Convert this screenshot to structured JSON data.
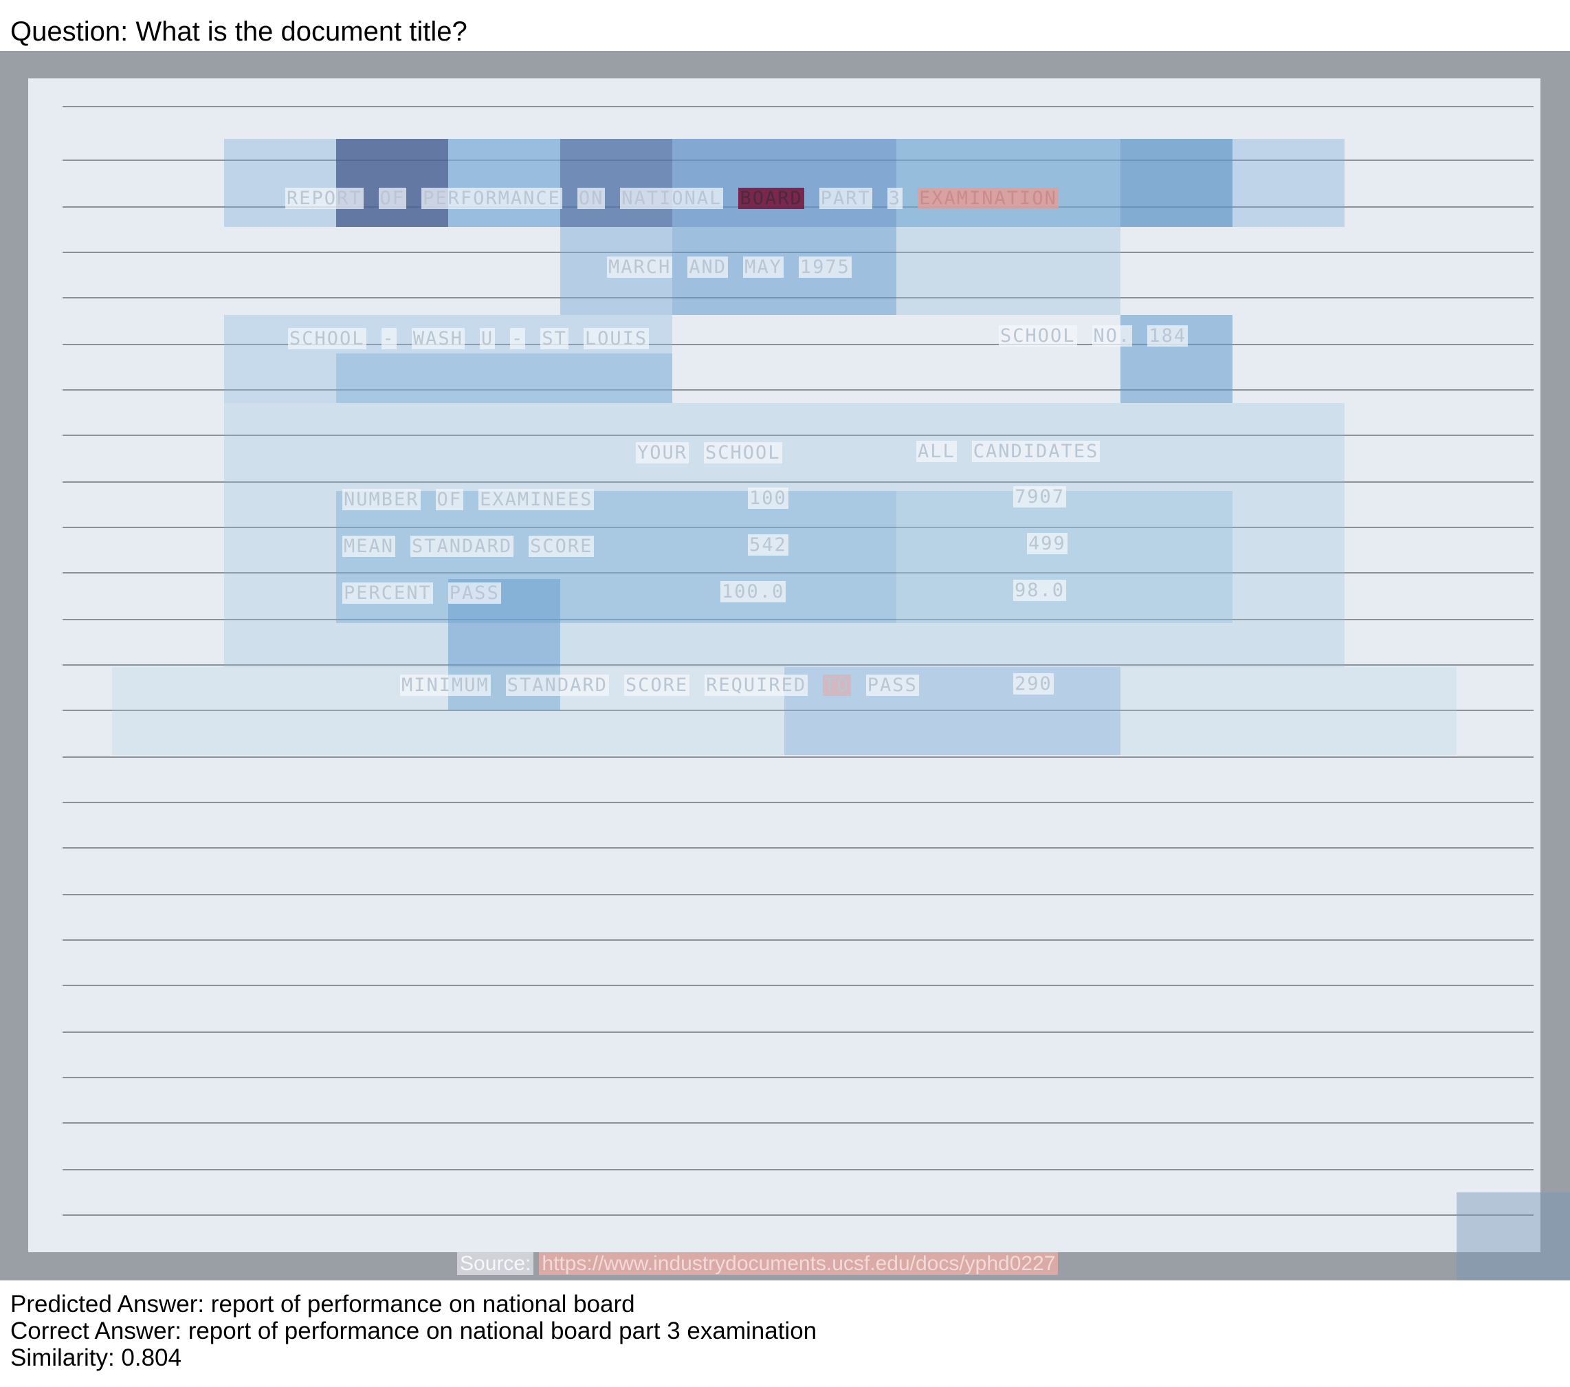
{
  "question": "Question: What is the document title?",
  "document": {
    "title_words": [
      "REPORT",
      "OF",
      "PERFORMANCE",
      "ON",
      "NATIONAL",
      "BOARD",
      "PART",
      "3",
      "EXAMINATION"
    ],
    "date_words": [
      "MARCH",
      "AND",
      "MAY",
      "1975"
    ],
    "school_words": [
      "SCHOOL",
      "-",
      "WASH",
      "U",
      "-",
      "ST",
      "LOUIS"
    ],
    "school_no_words": [
      "SCHOOL",
      "NO.",
      "184"
    ],
    "col_your_school": [
      "YOUR",
      "SCHOOL"
    ],
    "col_all_candidates": [
      "ALL",
      "CANDIDATES"
    ],
    "rows": [
      {
        "label": [
          "NUMBER",
          "OF",
          "EXAMINEES"
        ],
        "your_school": "100",
        "all_candidates": "7907"
      },
      {
        "label": [
          "MEAN",
          "STANDARD",
          "SCORE"
        ],
        "your_school": "542",
        "all_candidates": "499"
      },
      {
        "label": [
          "PERCENT",
          "PASS"
        ],
        "your_school": "100.0",
        "all_candidates": "98.0"
      }
    ],
    "minimum_words": [
      "MINIMUM",
      "STANDARD",
      "SCORE",
      "REQUIRED",
      "TO",
      "PASS"
    ],
    "minimum_value": "290"
  },
  "source": {
    "label": "Source:",
    "url": "https://www.industrydocuments.ucsf.edu/docs/yphd0227"
  },
  "predicted_answer": "Predicted Answer: report of performance on national board",
  "correct_answer": "Correct Answer: report of performance on national board part 3 examination",
  "similarity": "Similarity: 0.804"
}
